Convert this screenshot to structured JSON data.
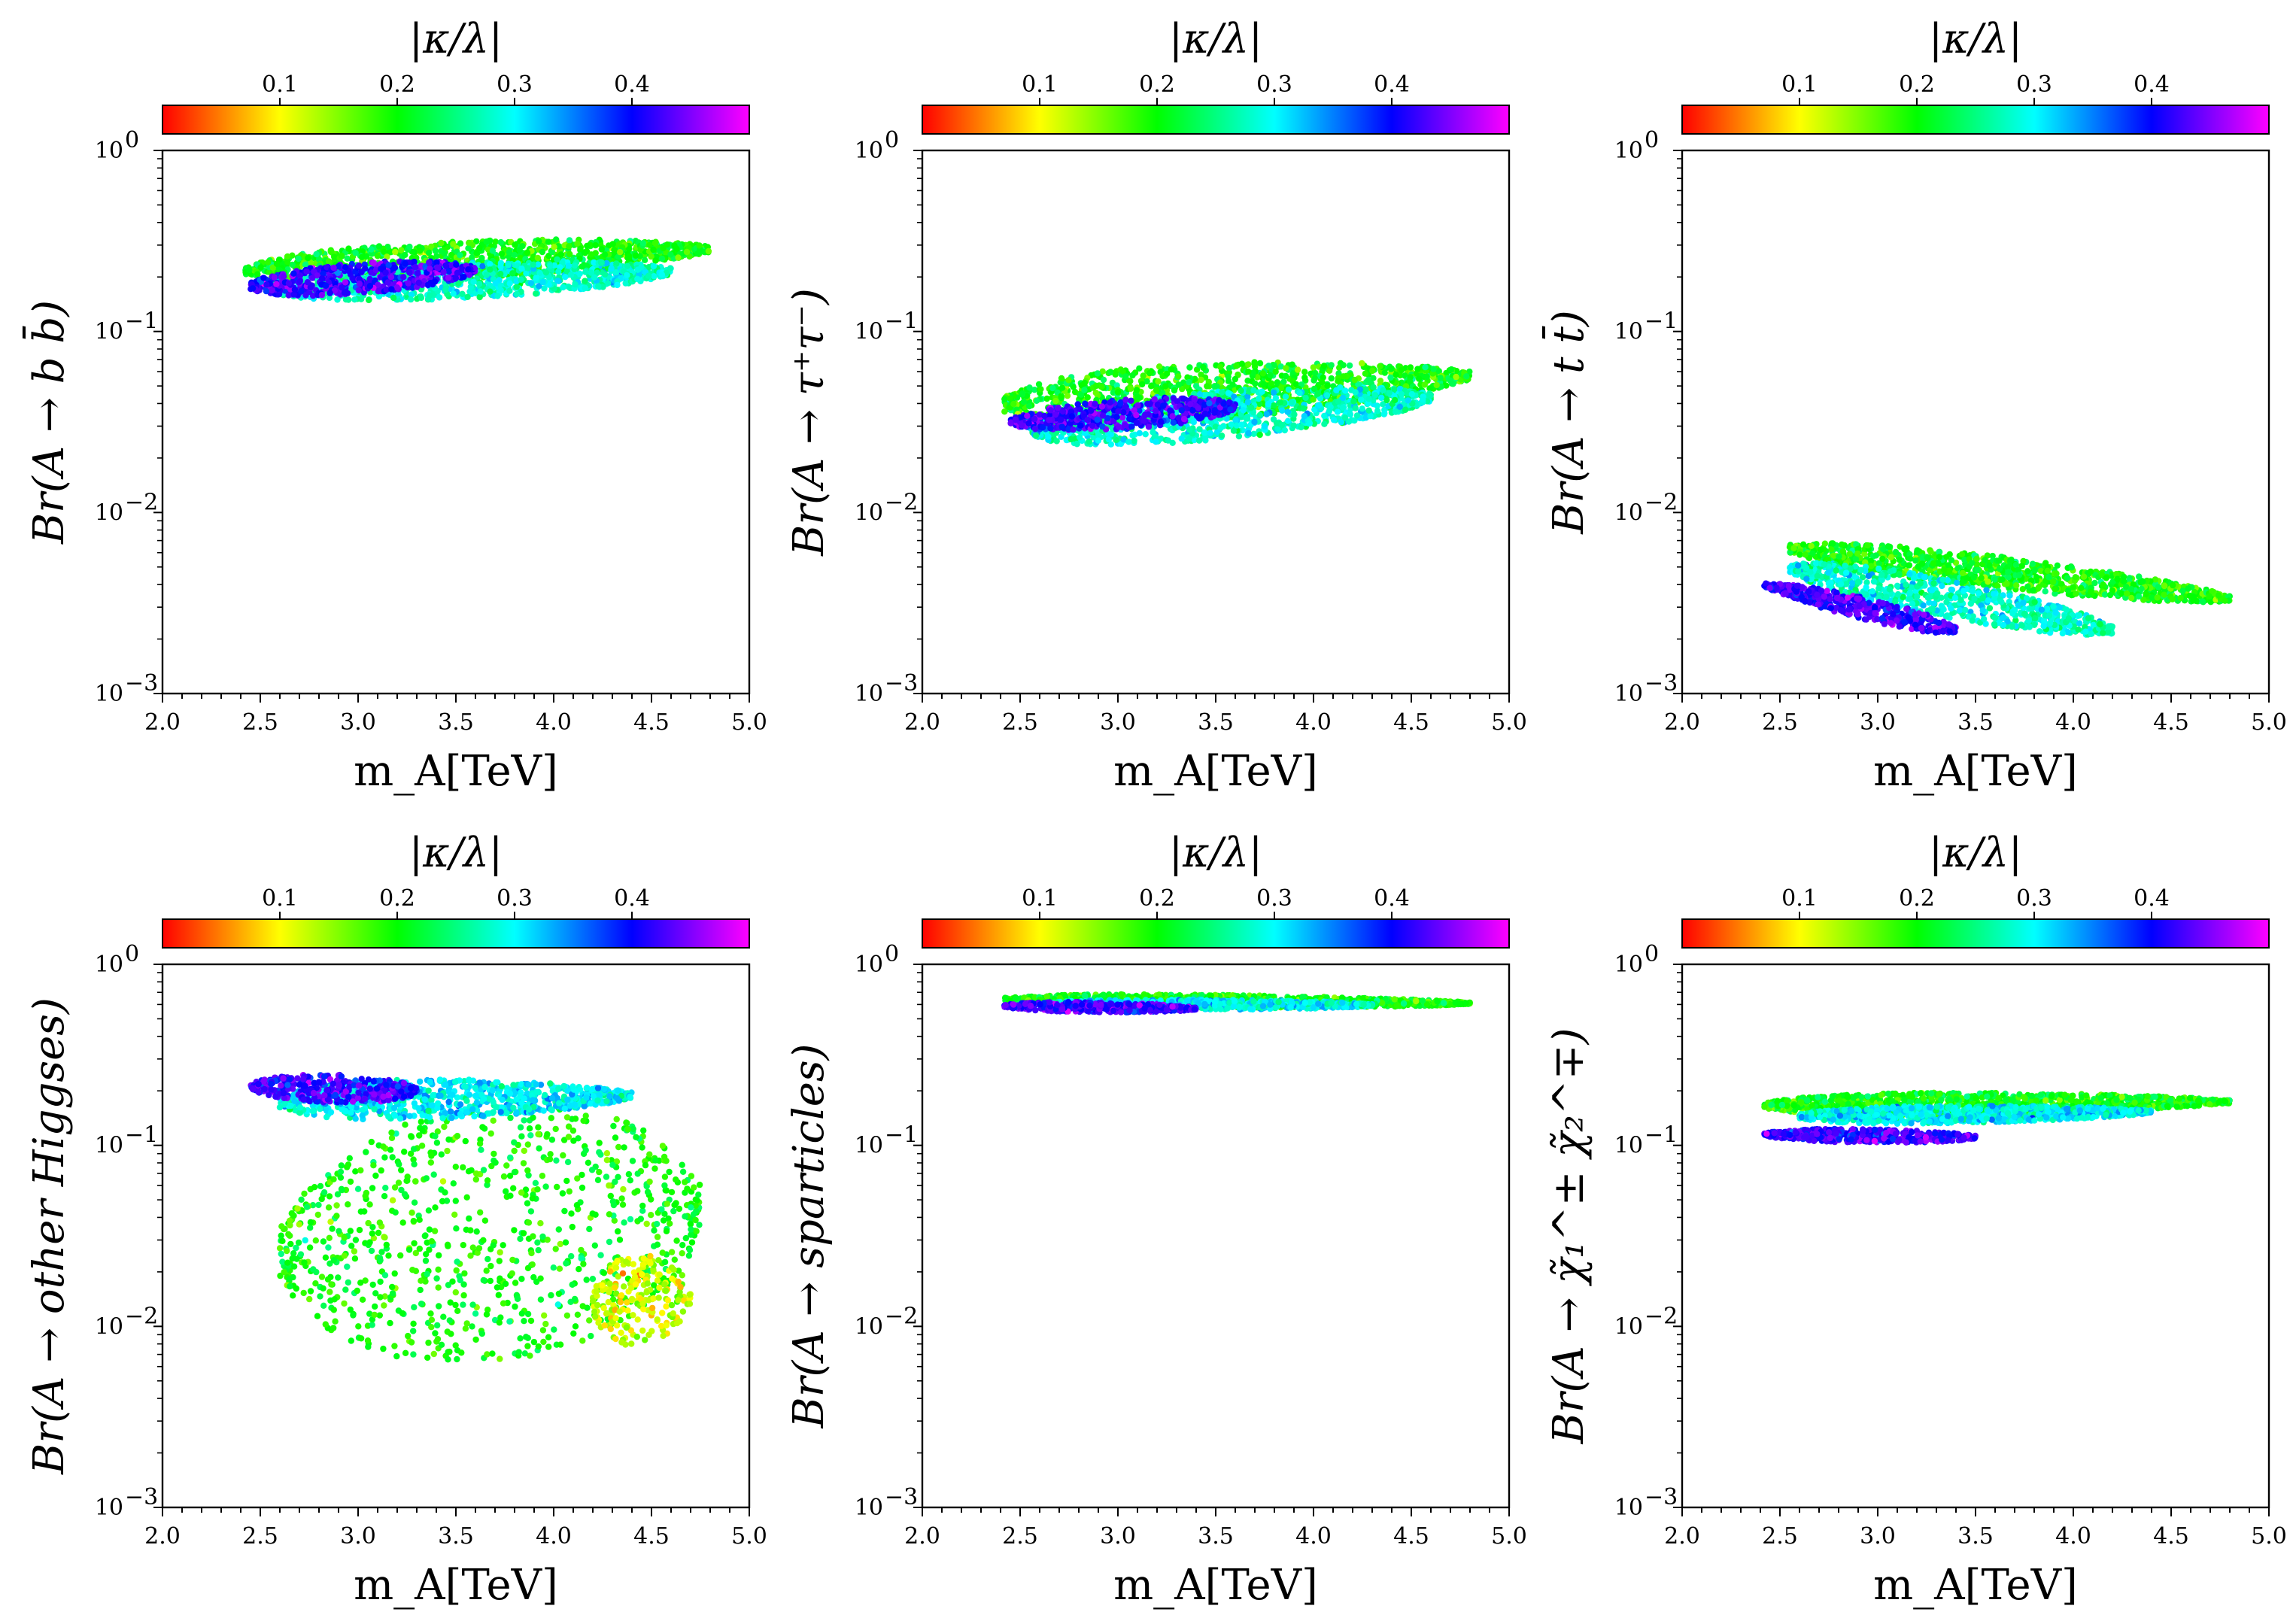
{
  "figure": {
    "colorbar_stops": [
      "#ff0000",
      "#ffff00",
      "#00ff00",
      "#00ffff",
      "#0000ff",
      "#ff00ff"
    ]
  },
  "chart_data": [
    {
      "type": "scatter",
      "xlabel": "m_A[TeV]",
      "ylabel": "Br(A → b b̄)",
      "xlim": [
        2.0,
        5.0
      ],
      "ylim": [
        0.001,
        1
      ],
      "yscale": "log",
      "xticks": [
        "2.0",
        "2.5",
        "3.0",
        "3.5",
        "4.0",
        "4.5",
        "5.0"
      ],
      "yticks": [
        {
          "base": "10",
          "exp": "0"
        },
        {
          "base": "10",
          "exp": "−1"
        },
        {
          "base": "10",
          "exp": "−2"
        },
        {
          "base": "10",
          "exp": "−3"
        }
      ],
      "colorbar": {
        "label": "|κ/λ|",
        "range": [
          0.0,
          0.5
        ],
        "ticks": [
          "0.1",
          "0.2",
          "0.3",
          "0.4"
        ],
        "location": "top"
      },
      "bands": [
        {
          "kappa_lambda": 0.2,
          "x_range": [
            2.42,
            4.8
          ],
          "log10_y_start": [
            -0.78,
            -0.54
          ],
          "log10_y_end": [
            -0.63,
            -0.46
          ]
        },
        {
          "kappa_lambda": 0.28,
          "x_range": [
            2.55,
            4.6
          ],
          "log10_y_start": [
            -0.87,
            -0.66
          ],
          "log10_y_end": [
            -0.76,
            -0.58
          ]
        },
        {
          "kappa_lambda": 0.42,
          "x_range": [
            2.45,
            3.6
          ],
          "log10_y_start": [
            -0.84,
            -0.66
          ],
          "log10_y_end": [
            -0.74,
            -0.58
          ]
        }
      ]
    },
    {
      "type": "scatter",
      "xlabel": "m_A[TeV]",
      "ylabel": "Br(A → τ⁺τ⁻)",
      "xlim": [
        2.0,
        5.0
      ],
      "ylim": [
        0.001,
        1
      ],
      "yscale": "log",
      "xticks": [
        "2.0",
        "2.5",
        "3.0",
        "3.5",
        "4.0",
        "4.5",
        "5.0"
      ],
      "yticks": [
        {
          "base": "10",
          "exp": "0"
        },
        {
          "base": "10",
          "exp": "−1"
        },
        {
          "base": "10",
          "exp": "−2"
        },
        {
          "base": "10",
          "exp": "−3"
        }
      ],
      "colorbar": {
        "label": "|κ/λ|",
        "range": [
          0.0,
          0.5
        ],
        "ticks": [
          "0.1",
          "0.2",
          "0.3",
          "0.4"
        ],
        "location": "top"
      },
      "bands": [
        {
          "kappa_lambda": 0.2,
          "x_range": [
            2.42,
            4.8
          ],
          "log10_y_start": [
            -1.6,
            -1.2
          ],
          "log10_y_end": [
            -1.35,
            -1.14
          ]
        },
        {
          "kappa_lambda": 0.28,
          "x_range": [
            2.55,
            4.6
          ],
          "log10_y_start": [
            -1.7,
            -1.4
          ],
          "log10_y_end": [
            -1.48,
            -1.25
          ]
        },
        {
          "kappa_lambda": 0.42,
          "x_range": [
            2.45,
            3.6
          ],
          "log10_y_start": [
            -1.58,
            -1.42
          ],
          "log10_y_end": [
            -1.5,
            -1.33
          ]
        }
      ]
    },
    {
      "type": "scatter",
      "xlabel": "m_A[TeV]",
      "ylabel": "Br(A → t t̄)",
      "xlim": [
        2.0,
        5.0
      ],
      "ylim": [
        0.001,
        1
      ],
      "yscale": "log",
      "xticks": [
        "2.0",
        "2.5",
        "3.0",
        "3.5",
        "4.0",
        "4.5",
        "5.0"
      ],
      "yticks": [
        {
          "base": "10",
          "exp": "0"
        },
        {
          "base": "10",
          "exp": "−1"
        },
        {
          "base": "10",
          "exp": "−2"
        },
        {
          "base": "10",
          "exp": "−3"
        }
      ],
      "colorbar": {
        "label": "|κ/λ|",
        "range": [
          0.0,
          0.5
        ],
        "ticks": [
          "0.1",
          "0.2",
          "0.3",
          "0.4"
        ],
        "location": "top"
      },
      "bands": [
        {
          "kappa_lambda": 0.2,
          "x_range": [
            2.55,
            4.8
          ],
          "log10_y_start": [
            -2.3,
            -2.1
          ],
          "log10_y_end": [
            -2.55,
            -2.4
          ]
        },
        {
          "kappa_lambda": 0.28,
          "x_range": [
            2.55,
            4.2
          ],
          "log10_y_start": [
            -2.42,
            -2.2
          ],
          "log10_y_end": [
            -2.75,
            -2.55
          ]
        },
        {
          "kappa_lambda": 0.42,
          "x_range": [
            2.42,
            3.4
          ],
          "log10_y_start": [
            -2.45,
            -2.35
          ],
          "log10_y_end": [
            -2.72,
            -2.58
          ]
        }
      ]
    },
    {
      "type": "scatter",
      "xlabel": "m_A[TeV]",
      "ylabel": "Br(A → other Higgses)",
      "xlim": [
        2.0,
        5.0
      ],
      "ylim": [
        0.001,
        1
      ],
      "yscale": "log",
      "xticks": [
        "2.0",
        "2.5",
        "3.0",
        "3.5",
        "4.0",
        "4.5",
        "5.0"
      ],
      "yticks": [
        {
          "base": "10",
          "exp": "0"
        },
        {
          "base": "10",
          "exp": "−1"
        },
        {
          "base": "10",
          "exp": "−2"
        },
        {
          "base": "10",
          "exp": "−3"
        }
      ],
      "colorbar": {
        "label": "|κ/λ|",
        "range": [
          0.0,
          0.5
        ],
        "ticks": [
          "0.1",
          "0.2",
          "0.3",
          "0.4"
        ],
        "location": "top"
      },
      "bands": [
        {
          "kappa_lambda": 0.2,
          "x_range": [
            2.6,
            4.75
          ],
          "log10_y_start": [
            -2.3,
            -0.9
          ],
          "log10_y_end": [
            -2.1,
            -0.65
          ]
        },
        {
          "kappa_lambda": 0.12,
          "x_range": [
            4.2,
            4.7
          ],
          "log10_y_start": [
            -2.15,
            -1.6
          ],
          "log10_y_end": [
            -2.05,
            -1.6
          ]
        },
        {
          "kappa_lambda": 0.3,
          "x_range": [
            2.6,
            4.4
          ],
          "log10_y_start": [
            -0.9,
            -0.62
          ],
          "log10_y_end": [
            -0.8,
            -0.65
          ]
        },
        {
          "kappa_lambda": 0.42,
          "x_range": [
            2.45,
            3.3
          ],
          "log10_y_start": [
            -0.75,
            -0.6
          ],
          "log10_y_end": [
            -0.78,
            -0.62
          ]
        }
      ]
    },
    {
      "type": "scatter",
      "xlabel": "m_A[TeV]",
      "ylabel": "Br(A → sparticles)",
      "xlim": [
        2.0,
        5.0
      ],
      "ylim": [
        0.001,
        1
      ],
      "yscale": "log",
      "xticks": [
        "2.0",
        "2.5",
        "3.0",
        "3.5",
        "4.0",
        "4.5",
        "5.0"
      ],
      "yticks": [
        {
          "base": "10",
          "exp": "0"
        },
        {
          "base": "10",
          "exp": "−1"
        },
        {
          "base": "10",
          "exp": "−2"
        },
        {
          "base": "10",
          "exp": "−3"
        }
      ],
      "colorbar": {
        "label": "|κ/λ|",
        "range": [
          0.0,
          0.5
        ],
        "ticks": [
          "0.1",
          "0.2",
          "0.3",
          "0.4"
        ],
        "location": "top"
      },
      "bands": [
        {
          "kappa_lambda": 0.2,
          "x_range": [
            2.42,
            4.8
          ],
          "log10_y_start": [
            -0.24,
            -0.15
          ],
          "log10_y_end": [
            -0.24,
            -0.19
          ]
        },
        {
          "kappa_lambda": 0.3,
          "x_range": [
            2.6,
            4.3
          ],
          "log10_y_start": [
            -0.25,
            -0.19
          ],
          "log10_y_end": [
            -0.25,
            -0.2
          ]
        },
        {
          "kappa_lambda": 0.42,
          "x_range": [
            2.42,
            3.4
          ],
          "log10_y_start": [
            -0.26,
            -0.2
          ],
          "log10_y_end": [
            -0.27,
            -0.22
          ]
        }
      ]
    },
    {
      "type": "scatter",
      "xlabel": "m_A[TeV]",
      "ylabel": "Br(A → χ̃₁^± χ̃₂^∓)",
      "xlim": [
        2.0,
        5.0
      ],
      "ylim": [
        0.001,
        1
      ],
      "yscale": "log",
      "xticks": [
        "2.0",
        "2.5",
        "3.0",
        "3.5",
        "4.0",
        "4.5",
        "5.0"
      ],
      "yticks": [
        {
          "base": "10",
          "exp": "0"
        },
        {
          "base": "10",
          "exp": "−1"
        },
        {
          "base": "10",
          "exp": "−2"
        },
        {
          "base": "10",
          "exp": "−3"
        }
      ],
      "colorbar": {
        "label": "|κ/λ|",
        "range": [
          0.0,
          0.5
        ],
        "ticks": [
          "0.1",
          "0.2",
          "0.3",
          "0.4"
        ],
        "location": "top"
      },
      "bands": [
        {
          "kappa_lambda": 0.2,
          "x_range": [
            2.42,
            4.8
          ],
          "log10_y_start": [
            -0.86,
            -0.7
          ],
          "log10_y_end": [
            -0.8,
            -0.72
          ]
        },
        {
          "kappa_lambda": 0.3,
          "x_range": [
            2.6,
            4.4
          ],
          "log10_y_start": [
            -0.9,
            -0.78
          ],
          "log10_y_end": [
            -0.85,
            -0.78
          ]
        },
        {
          "kappa_lambda": 0.42,
          "x_range": [
            2.42,
            3.5
          ],
          "log10_y_start": [
            -0.98,
            -0.9
          ],
          "log10_y_end": [
            -0.99,
            -0.92
          ]
        }
      ]
    }
  ]
}
